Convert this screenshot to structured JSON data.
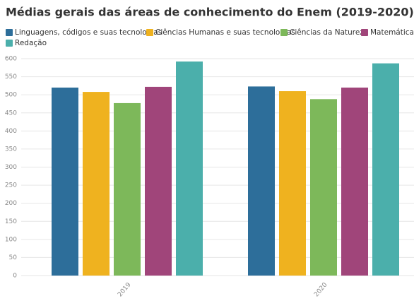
{
  "chart_data": {
    "type": "bar",
    "title": "Médias gerais das áreas de conhecimento do Enem (2019-2020)",
    "categories": [
      "2019",
      "2020"
    ],
    "series": [
      {
        "name": "Linguagens, códigos e suas tecnologias",
        "color": "#2d6e9a",
        "values": [
          520,
          523
        ]
      },
      {
        "name": "Ciências Humanas e suas tecnologias",
        "color": "#efb21f",
        "values": [
          508,
          510
        ]
      },
      {
        "name": "Ciências da Natureza",
        "color": "#7db85a",
        "values": [
          477,
          488
        ]
      },
      {
        "name": "Matemática",
        "color": "#a0457a",
        "values": [
          522,
          520
        ]
      },
      {
        "name": "Redação",
        "color": "#4bafab",
        "values": [
          592,
          587
        ]
      }
    ],
    "ylim": [
      0,
      600
    ],
    "yticks": [
      0,
      50,
      100,
      150,
      200,
      250,
      300,
      350,
      400,
      450,
      500,
      550,
      600
    ],
    "grid": true,
    "legend": "top"
  }
}
